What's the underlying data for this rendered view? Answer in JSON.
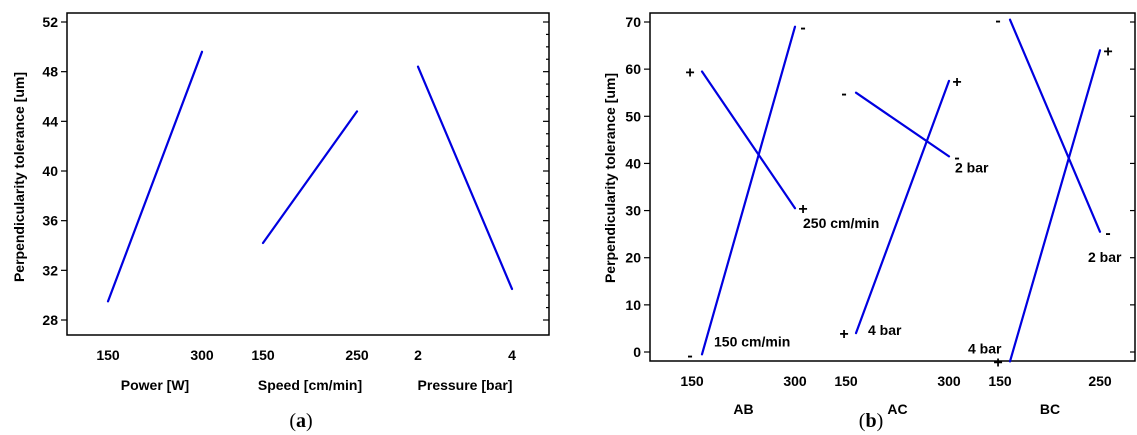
{
  "chart_data": [
    {
      "type": "line",
      "caption": "a",
      "ylabel": "Perpendicularity tolerance [um]",
      "ylim": [
        28,
        52
      ],
      "yticks": [
        28,
        32,
        36,
        40,
        44,
        48,
        52
      ],
      "groups": [
        {
          "xlabel": "Power [W]",
          "x_ticks": [
            "150",
            "300"
          ],
          "values": [
            29.5,
            49.6
          ]
        },
        {
          "xlabel": "Speed [cm/min]",
          "x_ticks": [
            "150",
            "250"
          ],
          "values": [
            34.2,
            44.8
          ]
        },
        {
          "xlabel": "Pressure [bar]",
          "x_ticks": [
            "2",
            "4"
          ],
          "values": [
            48.4,
            30.5
          ]
        }
      ],
      "grid": false
    },
    {
      "type": "line",
      "caption": "b",
      "ylabel": "Perpendicularity tolerance [um]",
      "ylim": [
        -2,
        71
      ],
      "yticks": [
        0,
        10,
        20,
        30,
        40,
        50,
        60,
        70
      ],
      "groups": [
        {
          "xlabel": "AB",
          "x_ticks": [
            "150",
            "300"
          ],
          "series": [
            {
              "values": [
                59.5,
                30.5
              ],
              "start_sign": "+",
              "end_sign": "+",
              "label": "250 cm/min"
            },
            {
              "values": [
                -0.5,
                69
              ],
              "start_sign": "-",
              "end_sign": "-",
              "label": "150 cm/min"
            }
          ]
        },
        {
          "xlabel": "AC",
          "x_ticks": [
            "150",
            "300"
          ],
          "series": [
            {
              "values": [
                55,
                41.5
              ],
              "start_sign": "-",
              "end_sign": "-",
              "label": "2 bar"
            },
            {
              "values": [
                4,
                57.5
              ],
              "start_sign": "+",
              "end_sign": "+",
              "label": "4 bar"
            }
          ]
        },
        {
          "xlabel": "BC",
          "x_ticks": [
            "150",
            "250"
          ],
          "series": [
            {
              "values": [
                70.5,
                25.5
              ],
              "start_sign": "-",
              "end_sign": "-",
              "label": "2 bar"
            },
            {
              "values": [
                -2,
                64
              ],
              "start_sign": "+",
              "end_sign": "+",
              "label": "4 bar"
            }
          ]
        }
      ],
      "grid": false
    }
  ],
  "colors": {
    "line": "#0000e0"
  }
}
